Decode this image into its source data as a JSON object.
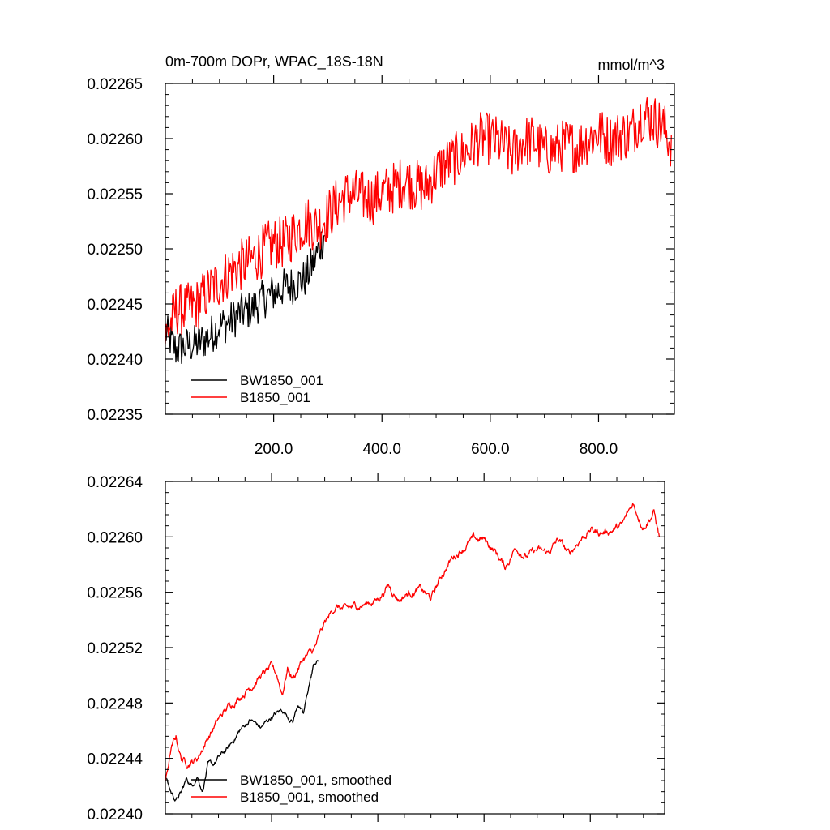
{
  "chart_data": [
    {
      "type": "line",
      "title": "0m-700m DOPr, WPAC_18S-18N",
      "units": "mmol/m^3",
      "xlim": [
        0,
        940
      ],
      "ylim": [
        0.02235,
        0.02265
      ],
      "xticks": [
        200,
        400,
        600,
        800
      ],
      "xtick_labels": [
        "200.0",
        "400.0",
        "600.0",
        "800.0"
      ],
      "yticks": [
        0.02235,
        0.0224,
        0.02245,
        0.0225,
        0.02255,
        0.0226,
        0.02265
      ],
      "ytick_labels": [
        "0.02235",
        "0.02240",
        "0.02245",
        "0.02250",
        "0.02255",
        "0.02260",
        "0.02265"
      ],
      "legend_position": "bottom-left",
      "series": [
        {
          "name": "BW1850_001",
          "color": "#000000",
          "x": [
            0,
            20,
            40,
            60,
            80,
            100,
            120,
            140,
            160,
            180,
            200,
            220,
            240,
            260,
            280,
            295
          ],
          "y": [
            0.022425,
            0.022408,
            0.022412,
            0.022414,
            0.02242,
            0.02243,
            0.022434,
            0.022442,
            0.022445,
            0.022454,
            0.02246,
            0.022465,
            0.022468,
            0.022474,
            0.022495,
            0.022515
          ],
          "noise": 1.8e-05
        },
        {
          "name": "B1850_001",
          "color": "#ff0000",
          "x": [
            0,
            20,
            40,
            60,
            80,
            100,
            120,
            140,
            160,
            180,
            200,
            220,
            240,
            260,
            280,
            300,
            320,
            340,
            360,
            380,
            400,
            420,
            440,
            460,
            480,
            500,
            520,
            540,
            560,
            580,
            600,
            620,
            640,
            660,
            680,
            700,
            720,
            740,
            760,
            780,
            800,
            820,
            840,
            860,
            880,
            900,
            920,
            935
          ],
          "y": [
            0.02242,
            0.022445,
            0.022445,
            0.02245,
            0.022462,
            0.02247,
            0.02248,
            0.022485,
            0.02249,
            0.022498,
            0.022505,
            0.022505,
            0.022515,
            0.022525,
            0.02252,
            0.02253,
            0.022543,
            0.02255,
            0.022548,
            0.022545,
            0.02255,
            0.022555,
            0.022562,
            0.022558,
            0.022555,
            0.02257,
            0.022578,
            0.022583,
            0.02259,
            0.0226,
            0.0226,
            0.022595,
            0.022585,
            0.022598,
            0.022598,
            0.022588,
            0.02259,
            0.022595,
            0.022592,
            0.0226,
            0.022605,
            0.022598,
            0.022603,
            0.022605,
            0.022622,
            0.022618,
            0.02261,
            0.022595
          ],
          "noise": 2.4e-05
        }
      ]
    },
    {
      "type": "line",
      "title": "",
      "xlim": [
        0,
        940
      ],
      "ylim": [
        0.0224,
        0.02264
      ],
      "xticks": [
        200,
        400,
        600,
        800
      ],
      "yticks": [
        0.0224,
        0.02244,
        0.02248,
        0.02252,
        0.02256,
        0.0226,
        0.02264
      ],
      "ytick_labels": [
        "0.02240",
        "0.02244",
        "0.02248",
        "0.02252",
        "0.02256",
        "0.02260",
        "0.02264"
      ],
      "legend_position": "bottom-left",
      "series": [
        {
          "name": "BW1850_001, smoothed",
          "color": "#000000",
          "x": [
            0,
            10,
            20,
            30,
            40,
            50,
            60,
            70,
            80,
            90,
            100,
            120,
            140,
            160,
            180,
            200,
            220,
            240,
            250,
            260,
            270,
            280,
            290
          ],
          "y": [
            0.022427,
            0.022416,
            0.02241,
            0.022415,
            0.022425,
            0.02242,
            0.022428,
            0.022417,
            0.022435,
            0.022435,
            0.02244,
            0.022448,
            0.02246,
            0.022468,
            0.022462,
            0.02247,
            0.022475,
            0.022467,
            0.02248,
            0.022471,
            0.022492,
            0.022508,
            0.022511
          ],
          "noise": 2.5e-06
        },
        {
          "name": "B1850_001, smoothed",
          "color": "#ff0000",
          "x": [
            0,
            10,
            20,
            30,
            40,
            50,
            60,
            80,
            100,
            120,
            140,
            160,
            180,
            200,
            210,
            220,
            230,
            240,
            260,
            280,
            300,
            320,
            340,
            360,
            380,
            400,
            420,
            440,
            460,
            480,
            500,
            520,
            540,
            560,
            580,
            600,
            620,
            640,
            660,
            680,
            700,
            720,
            740,
            760,
            780,
            800,
            820,
            840,
            860,
            880,
            900,
            920,
            930
          ],
          "y": [
            0.022422,
            0.022445,
            0.022455,
            0.02244,
            0.022437,
            0.022438,
            0.02244,
            0.022455,
            0.022468,
            0.022478,
            0.022485,
            0.022492,
            0.0225,
            0.022505,
            0.0225,
            0.022487,
            0.022505,
            0.022498,
            0.022512,
            0.022518,
            0.022537,
            0.02255,
            0.022547,
            0.02255,
            0.022552,
            0.022555,
            0.022565,
            0.022555,
            0.02256,
            0.022562,
            0.022555,
            0.022572,
            0.022585,
            0.022592,
            0.022598,
            0.022598,
            0.02259,
            0.022578,
            0.022593,
            0.022586,
            0.02259,
            0.022588,
            0.022598,
            0.022587,
            0.022598,
            0.022605,
            0.022603,
            0.022605,
            0.022608,
            0.022624,
            0.022608,
            0.022618,
            0.0226
          ],
          "noise": 3.5e-06
        }
      ]
    }
  ]
}
